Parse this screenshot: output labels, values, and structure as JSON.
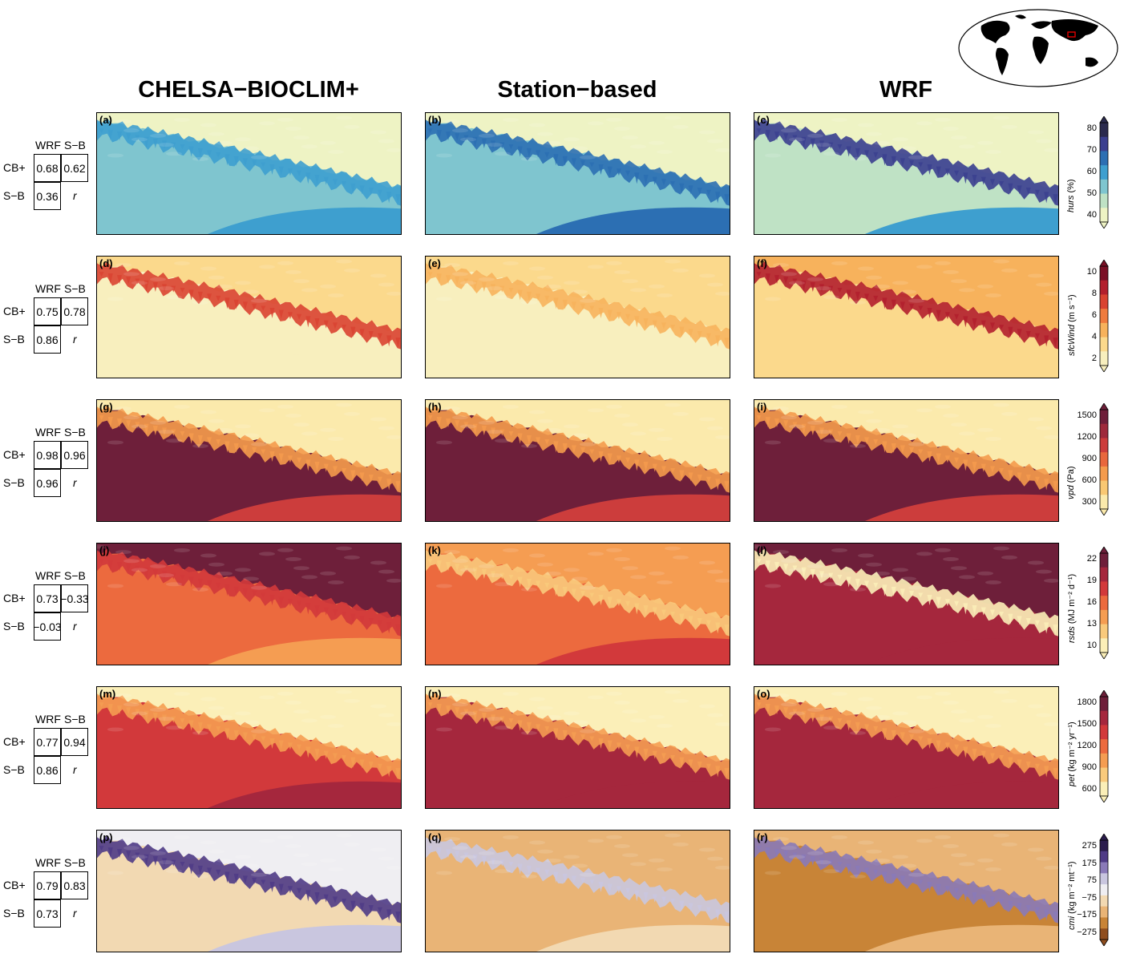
{
  "columns": [
    "CHELSA−BIOCLIM+",
    "Station−based",
    "WRF"
  ],
  "table_headers": {
    "col1": "WRF",
    "col2": "S−B",
    "row1": "CB+",
    "row2": "S−B",
    "corner": "r"
  },
  "chart_data": {
    "type": "heatmap",
    "rows": [
      {
        "variable": "hurs",
        "unit": "(%)",
        "labels": [
          "(a)",
          "(b)",
          "(c)"
        ],
        "correlations": {
          "cb_wrf": "0.68",
          "cb_sb": "0.62",
          "sb_wrf": "0.36"
        },
        "colorbar": {
          "ticks": [
            "80",
            "70",
            "60",
            "50",
            "40"
          ],
          "colors": [
            "#2a2a4e",
            "#3b3f8f",
            "#2c6fb3",
            "#3e9fcf",
            "#7fc5cf",
            "#bfe2c5",
            "#eef3c4"
          ]
        }
      },
      {
        "variable": "sfcWind",
        "unit": "(m s⁻¹)",
        "labels": [
          "(d)",
          "(e)",
          "(f)"
        ],
        "correlations": {
          "cb_wrf": "0.75",
          "cb_sb": "0.78",
          "sb_wrf": "0.86"
        },
        "colorbar": {
          "ticks": [
            "10",
            "8",
            "6",
            "4",
            "2"
          ],
          "colors": [
            "#7a1026",
            "#b21f2d",
            "#d94331",
            "#ef7b3e",
            "#f7b25c",
            "#fbd98c",
            "#f8efbe"
          ]
        }
      },
      {
        "variable": "vpd",
        "unit": "(Pa)",
        "labels": [
          "(g)",
          "(h)",
          "(i)"
        ],
        "correlations": {
          "cb_wrf": "0.98",
          "cb_sb": "0.96",
          "sb_wrf": "0.96"
        },
        "colorbar": {
          "ticks": [
            "1500",
            "1200",
            "900",
            "600",
            "300"
          ],
          "colors": [
            "#6e1f3a",
            "#9e2a3c",
            "#cc3d3c",
            "#e8673d",
            "#f49b4d",
            "#f9c873",
            "#fbeaac"
          ]
        }
      },
      {
        "variable": "rsds",
        "unit": "(MJ m⁻² d⁻¹)",
        "labels": [
          "(j)",
          "(k)",
          "(l)"
        ],
        "correlations": {
          "cb_wrf": "0.73",
          "cb_sb": "−0.33",
          "sb_wrf": "−0.03"
        },
        "colorbar": {
          "ticks": [
            "22",
            "19",
            "16",
            "13",
            "10"
          ],
          "colors": [
            "#6e1f3a",
            "#a5273d",
            "#d2393b",
            "#ec6a3e",
            "#f59d52",
            "#f9ca7c",
            "#fbefb8"
          ]
        }
      },
      {
        "variable": "pet",
        "unit": "(kg m⁻² yr⁻¹)",
        "labels": [
          "(m)",
          "(n)",
          "(o)"
        ],
        "correlations": {
          "cb_wrf": "0.77",
          "cb_sb": "0.94",
          "sb_wrf": "0.86"
        },
        "colorbar": {
          "ticks": [
            "1800",
            "1500",
            "1200",
            "900",
            "600"
          ],
          "colors": [
            "#6e1f3a",
            "#a5273d",
            "#d2393b",
            "#ec6a3e",
            "#f59d52",
            "#f9ca7c",
            "#fbefb8"
          ]
        }
      },
      {
        "variable": "cmi",
        "unit": "(kg m⁻² mt⁻¹)",
        "labels": [
          "(p)",
          "(q)",
          "(r)"
        ],
        "correlations": {
          "cb_wrf": "0.79",
          "cb_sb": "0.83",
          "sb_wrf": "0.73"
        },
        "colorbar": {
          "ticks": [
            "275",
            "175",
            "75",
            "−75",
            "−175",
            "−275"
          ],
          "colors": [
            "#2b1d4d",
            "#4f3b86",
            "#8a7ab8",
            "#c9c6df",
            "#efeef2",
            "#f2d9b2",
            "#e9b476",
            "#c88437",
            "#8f4e1f"
          ]
        }
      }
    ]
  }
}
